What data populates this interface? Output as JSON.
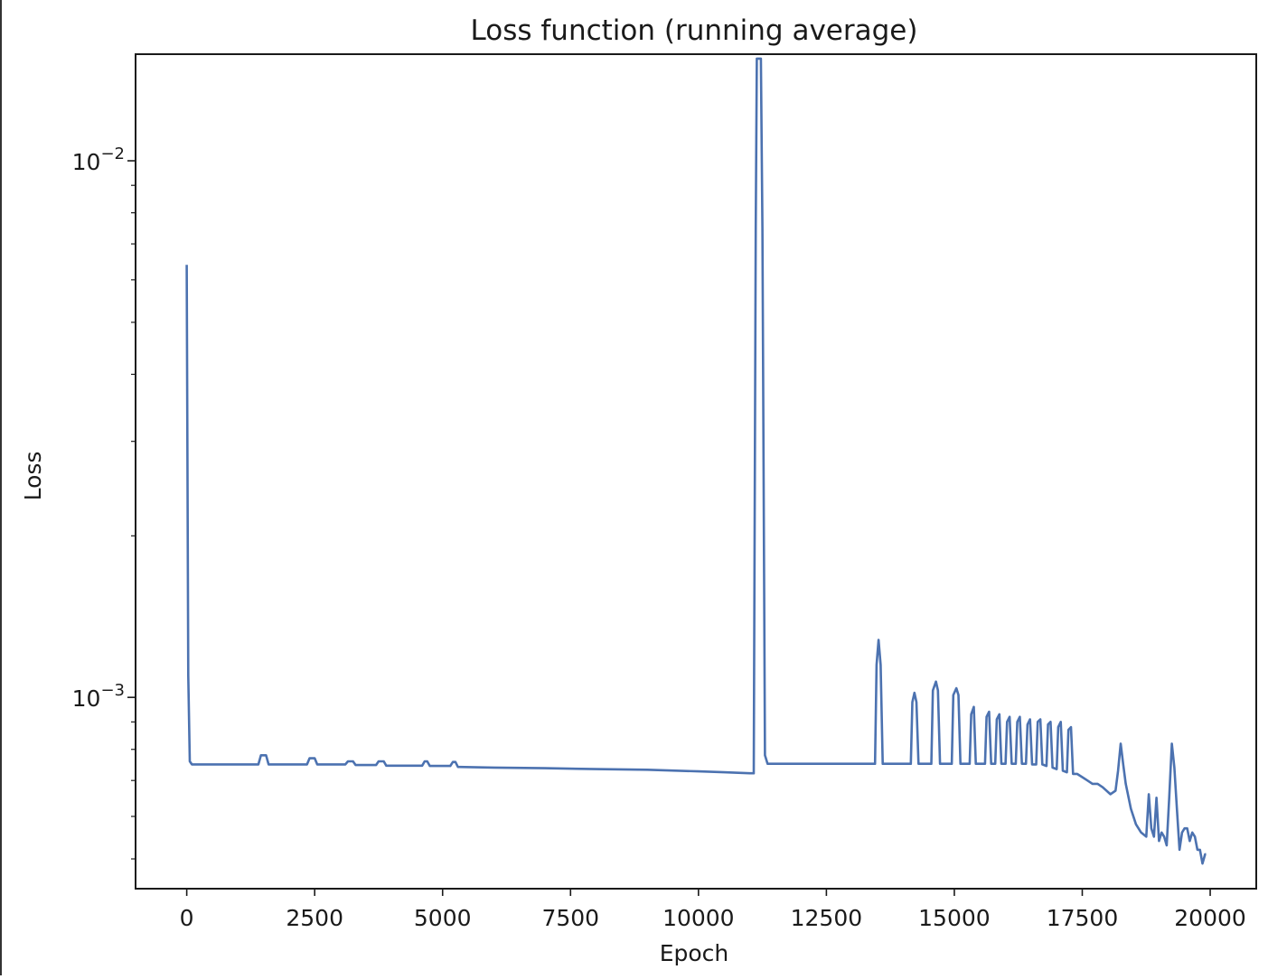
{
  "chart_data": {
    "type": "line",
    "title": "Loss function (running average)",
    "xlabel": "Epoch",
    "ylabel": "Loss",
    "yscale": "log",
    "xlim": [
      -1000,
      20900
    ],
    "ylim": [
      0.00044,
      0.0158
    ],
    "xticks": [
      0,
      2500,
      5000,
      7500,
      10000,
      12500,
      15000,
      17500,
      20000
    ],
    "xtick_labels": [
      "0",
      "2500",
      "5000",
      "7500",
      "10000",
      "12500",
      "15000",
      "17500",
      "20000"
    ],
    "yticks_major": [
      {
        "value": 0.01,
        "base": "10",
        "exp": "−2"
      },
      {
        "value": 0.001,
        "base": "10",
        "exp": "−3"
      }
    ],
    "yticks_minor": [
      0.0005,
      0.0006,
      0.0007,
      0.0008,
      0.0009,
      0.002,
      0.003,
      0.004,
      0.005,
      0.006,
      0.007,
      0.008,
      0.009
    ],
    "grid": false,
    "line_color": "#4c72b0",
    "series": [
      {
        "x": [
          0,
          30,
          60,
          100,
          1400,
          1450,
          1550,
          1600,
          2350,
          2400,
          2500,
          2550,
          3100,
          3150,
          3250,
          3300,
          3700,
          3750,
          3850,
          3900,
          4600,
          4650,
          4700,
          4750,
          5150,
          5200,
          5250,
          5300,
          6000,
          7000,
          8000,
          9000,
          10000,
          10500,
          11000,
          11080,
          11120,
          11140,
          11220,
          11250,
          11300,
          11350,
          13450,
          13480,
          13520,
          13560,
          13600,
          14150,
          14180,
          14220,
          14260,
          14300,
          14550,
          14580,
          14640,
          14680,
          14720,
          14950,
          14980,
          15040,
          15080,
          15120,
          15300,
          15330,
          15380,
          15420,
          15600,
          15630,
          15680,
          15720,
          15800,
          15830,
          15880,
          15920,
          16000,
          16030,
          16080,
          16120,
          16200,
          16230,
          16280,
          16320,
          16400,
          16430,
          16480,
          16520,
          16600,
          16630,
          16680,
          16720,
          16800,
          16830,
          16880,
          16920,
          17000,
          17030,
          17080,
          17120,
          17200,
          17230,
          17280,
          17320,
          17400,
          17500,
          17600,
          17700,
          17800,
          17900,
          18050,
          18150,
          18200,
          18250,
          18300,
          18350,
          18450,
          18550,
          18650,
          18750,
          18800,
          18850,
          18900,
          18950,
          19000,
          19050,
          19100,
          19150,
          19200,
          19250,
          19300,
          19350,
          19400,
          19450,
          19500,
          19550,
          19600,
          19650,
          19700,
          19750,
          19800,
          19850,
          19900,
          19920
        ],
        "y": [
          0.0064,
          0.0011,
          0.00076,
          0.00075,
          0.00075,
          0.00078,
          0.00078,
          0.00075,
          0.00075,
          0.00077,
          0.00077,
          0.00075,
          0.00075,
          0.00076,
          0.00076,
          0.000748,
          0.000748,
          0.00076,
          0.00076,
          0.000746,
          0.000746,
          0.00076,
          0.00076,
          0.000745,
          0.000745,
          0.000758,
          0.000758,
          0.000742,
          0.00074,
          0.000738,
          0.000735,
          0.000733,
          0.000728,
          0.000725,
          0.000722,
          0.000722,
          0.0075,
          0.0155,
          0.0155,
          0.0075,
          0.00078,
          0.000752,
          0.000752,
          0.00115,
          0.00128,
          0.00115,
          0.000752,
          0.000752,
          0.00098,
          0.00102,
          0.00098,
          0.000752,
          0.000752,
          0.00103,
          0.00107,
          0.00103,
          0.000752,
          0.000752,
          0.00101,
          0.00104,
          0.00101,
          0.000752,
          0.000752,
          0.00093,
          0.00096,
          0.000752,
          0.000752,
          0.00092,
          0.00094,
          0.000752,
          0.000752,
          0.00091,
          0.00093,
          0.000752,
          0.000752,
          0.0009,
          0.00092,
          0.000752,
          0.000752,
          0.0009,
          0.00092,
          0.000752,
          0.000752,
          0.00089,
          0.00091,
          0.00075,
          0.00075,
          0.0009,
          0.00091,
          0.00075,
          0.000745,
          0.00089,
          0.0009,
          0.00074,
          0.000735,
          0.00088,
          0.0009,
          0.00073,
          0.000725,
          0.00087,
          0.00088,
          0.00072,
          0.00072,
          0.00071,
          0.0007,
          0.00069,
          0.00069,
          0.00068,
          0.00066,
          0.00067,
          0.00073,
          0.00082,
          0.00075,
          0.00069,
          0.00062,
          0.00058,
          0.00056,
          0.00055,
          0.00066,
          0.00057,
          0.00055,
          0.00065,
          0.00054,
          0.00056,
          0.00055,
          0.00053,
          0.00065,
          0.00082,
          0.00074,
          0.00062,
          0.00052,
          0.00056,
          0.00057,
          0.00057,
          0.00054,
          0.00056,
          0.00055,
          0.00052,
          0.00052,
          0.00049,
          0.00051,
          0.00051
        ]
      }
    ]
  }
}
